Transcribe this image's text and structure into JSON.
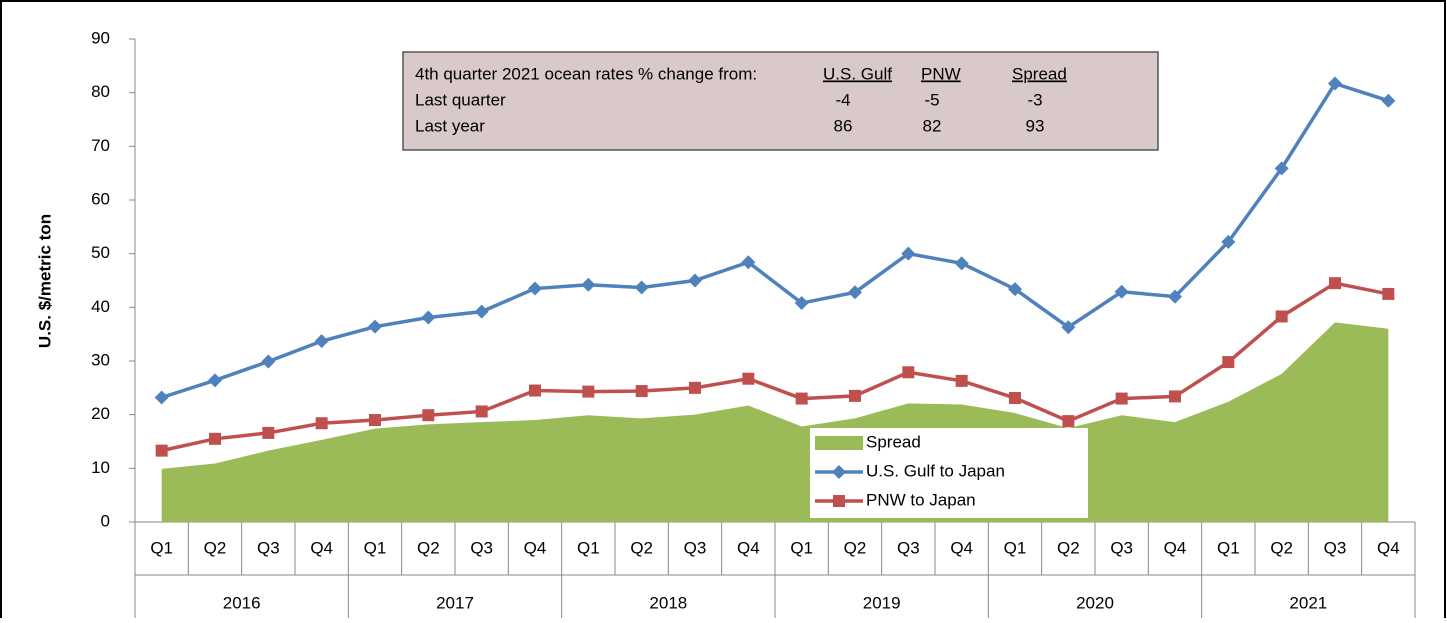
{
  "chart_data": {
    "type": "line",
    "y_label": "U.S. $/metric ton",
    "categories": [
      "Q1",
      "Q2",
      "Q3",
      "Q4",
      "Q1",
      "Q2",
      "Q3",
      "Q4",
      "Q1",
      "Q2",
      "Q3",
      "Q4",
      "Q1",
      "Q2",
      "Q3",
      "Q4",
      "Q1",
      "Q2",
      "Q3",
      "Q4",
      "Q1",
      "Q2",
      "Q3",
      "Q4"
    ],
    "category_groups": [
      "2016",
      "2017",
      "2018",
      "2019",
      "2020",
      "2021"
    ],
    "ylim": [
      0,
      90
    ],
    "yticks": [
      0,
      10,
      20,
      30,
      40,
      50,
      60,
      70,
      80,
      90
    ],
    "legend": "bottom-center",
    "series": [
      {
        "name": "Spread",
        "color": "#9bbb59",
        "mark": "area",
        "values": [
          9.9,
          10.9,
          13.3,
          15.3,
          17.4,
          18.2,
          18.6,
          19.0,
          19.9,
          19.3,
          20.0,
          21.7,
          17.8,
          19.3,
          22.1,
          21.9,
          20.3,
          17.5,
          19.9,
          18.6,
          22.4,
          27.6,
          37.2,
          36.0
        ]
      },
      {
        "name": "U.S. Gulf to Japan",
        "color": "#4f81bd",
        "mark": "diamond",
        "values": [
          23.2,
          26.4,
          29.9,
          33.7,
          36.4,
          38.1,
          39.2,
          43.5,
          44.2,
          43.7,
          45.0,
          48.4,
          40.8,
          42.8,
          50.0,
          48.2,
          43.4,
          36.3,
          42.9,
          42.0,
          52.2,
          65.9,
          81.7,
          78.5
        ]
      },
      {
        "name": "PNW to Japan",
        "color": "#c0504d",
        "mark": "square",
        "values": [
          13.3,
          15.5,
          16.6,
          18.4,
          19.0,
          19.9,
          20.6,
          24.5,
          24.3,
          24.4,
          25.0,
          26.7,
          23.0,
          23.5,
          27.9,
          26.3,
          23.1,
          18.8,
          23.0,
          23.4,
          29.8,
          38.3,
          44.5,
          42.5
        ]
      }
    ],
    "annotation_table": {
      "header": [
        "4th quarter 2021 ocean rates % change from:",
        "U.S. Gulf",
        "PNW",
        "Spread"
      ],
      "rows": [
        [
          "Last quarter",
          -4,
          -5,
          -3
        ],
        [
          "Last year",
          86,
          82,
          93
        ]
      ]
    }
  }
}
